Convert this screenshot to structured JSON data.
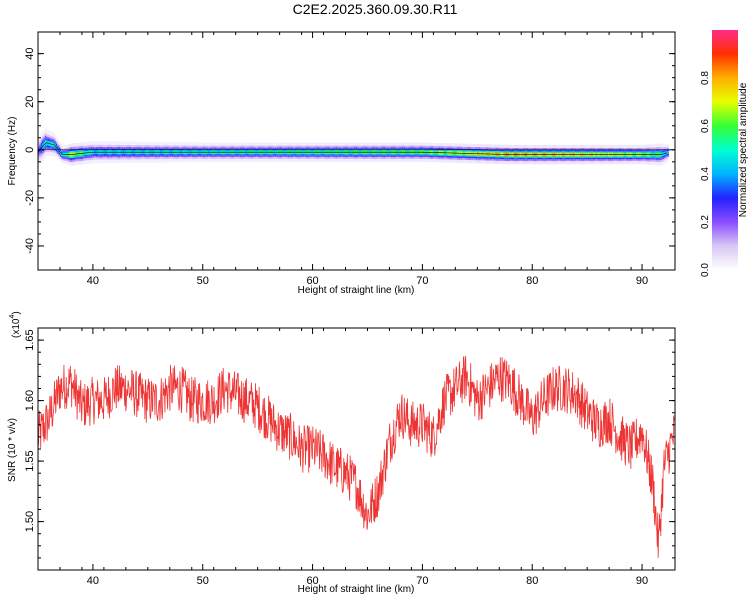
{
  "title": "C2E2.2025.360.09.30.R11",
  "colors": {
    "snr_line": "#ee3333",
    "frame": "#000000",
    "ridge_core": "#ff2020",
    "colormap": [
      "#ffffff",
      "#d9c7f5",
      "#8a4dff",
      "#2222ff",
      "#00b4ff",
      "#00ffd0",
      "#33ff33",
      "#e6ff00",
      "#ffb000",
      "#ff3000",
      "#ff2b8a"
    ]
  },
  "chart_data": [
    {
      "type": "heatmap",
      "title": "",
      "xlabel": "Height of straight line (km)",
      "ylabel": "Frequency (Hz)",
      "xlim": [
        35,
        93
      ],
      "ylim": [
        -50,
        49
      ],
      "xticks": [
        40,
        50,
        60,
        70,
        80,
        90
      ],
      "yticks": [
        -40,
        -20,
        0,
        20,
        40
      ],
      "ytick_labels": [
        "-40",
        "-20",
        "0",
        "20",
        "40"
      ],
      "colorbar": {
        "label": "Normalized spectral amplitude",
        "range": [
          0,
          1
        ],
        "ticks": [
          0.0,
          0.2,
          0.4,
          0.6,
          0.8
        ],
        "tick_labels": [
          "0.0",
          "0.2",
          "0.4",
          "0.6",
          "0.8"
        ],
        "colormap": "rainbow (white to purple to blue to cyan to green to yellow to red to magenta)"
      },
      "ridge": {
        "description": "narrow spectral line near zero frequency",
        "x": [
          35,
          35.7,
          36.5,
          37.2,
          38,
          40,
          50,
          60,
          70,
          78,
          85,
          90,
          91.8,
          92.4
        ],
        "freq_hz": [
          -1,
          3,
          2,
          -2,
          -2,
          -1,
          -1,
          -1,
          -1,
          -2,
          -2,
          -2,
          -2,
          -1
        ],
        "amplitude": [
          0.25,
          0.55,
          0.5,
          0.5,
          0.75,
          0.5,
          0.55,
          0.6,
          0.65,
          0.85,
          0.8,
          0.7,
          0.6,
          0.4
        ],
        "width_hz": [
          6,
          5,
          4,
          3,
          4,
          4,
          3.5,
          3.5,
          3.5,
          3.5,
          3.5,
          3.5,
          4,
          3
        ]
      },
      "grid": false
    },
    {
      "type": "line",
      "title": "",
      "xlabel": "Height of straight line (km)",
      "ylabel": "SNR (10 * v/v)",
      "y_multiplier_label": "(x10",
      "y_multiplier_exp": "4",
      "xlim": [
        35,
        93
      ],
      "ylim": [
        1.46,
        1.66
      ],
      "xticks": [
        40,
        50,
        60,
        70,
        80,
        90
      ],
      "yticks": [
        1.5,
        1.55,
        1.6,
        1.65
      ],
      "ytick_labels": [
        "1.50",
        "1.55",
        "1.60",
        "1.65"
      ],
      "series": [
        {
          "x": [
            35,
            36,
            37,
            38,
            39,
            40,
            41,
            42,
            43,
            44,
            45,
            46,
            47,
            48,
            49,
            50,
            51,
            52,
            53,
            54,
            55,
            56,
            57,
            58,
            59,
            60,
            61,
            62,
            63,
            64,
            65,
            66,
            67,
            68,
            69,
            70,
            71,
            72,
            73,
            74,
            75,
            76,
            77,
            78,
            79,
            80,
            81,
            82,
            83,
            84,
            85,
            86,
            87,
            88,
            89,
            90,
            91,
            91.5,
            92,
            93
          ],
          "values": [
            1.57,
            1.585,
            1.61,
            1.615,
            1.595,
            1.6,
            1.6,
            1.61,
            1.61,
            1.605,
            1.6,
            1.6,
            1.61,
            1.61,
            1.6,
            1.6,
            1.6,
            1.61,
            1.605,
            1.6,
            1.595,
            1.585,
            1.575,
            1.57,
            1.56,
            1.56,
            1.555,
            1.545,
            1.54,
            1.53,
            1.505,
            1.525,
            1.565,
            1.59,
            1.58,
            1.58,
            1.57,
            1.6,
            1.61,
            1.62,
            1.6,
            1.61,
            1.62,
            1.615,
            1.6,
            1.585,
            1.6,
            1.61,
            1.61,
            1.605,
            1.59,
            1.58,
            1.585,
            1.57,
            1.56,
            1.575,
            1.53,
            1.48,
            1.545,
            1.575
          ],
          "noise_amplitude": 0.02
        }
      ],
      "grid": false
    }
  ]
}
